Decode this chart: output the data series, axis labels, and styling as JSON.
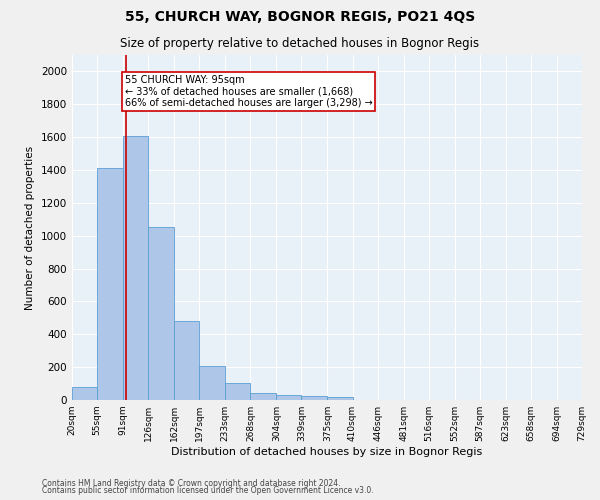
{
  "title1": "55, CHURCH WAY, BOGNOR REGIS, PO21 4QS",
  "title2": "Size of property relative to detached houses in Bognor Regis",
  "xlabel": "Distribution of detached houses by size in Bognor Regis",
  "ylabel": "Number of detached properties",
  "footnote1": "Contains HM Land Registry data © Crown copyright and database right 2024.",
  "footnote2": "Contains public sector information licensed under the Open Government Licence v3.0.",
  "bar_edges": [
    20,
    55,
    91,
    126,
    162,
    197,
    233,
    268,
    304,
    339,
    375,
    410,
    446,
    481,
    516,
    552,
    587,
    623,
    658,
    694,
    729
  ],
  "bar_heights": [
    80,
    1415,
    1610,
    1055,
    480,
    205,
    105,
    40,
    30,
    25,
    20,
    0,
    0,
    0,
    0,
    0,
    0,
    0,
    0,
    0
  ],
  "bar_color": "#aec6e8",
  "bar_edgecolor": "#5a9fd4",
  "bg_color": "#e8f0f8",
  "grid_color": "#ffffff",
  "vline_x": 95,
  "vline_color": "#cc0000",
  "annotation_line1": "55 CHURCH WAY: 95sqm",
  "annotation_line2": "← 33% of detached houses are smaller (1,668)",
  "annotation_line3": "66% of semi-detached houses are larger (3,298) →",
  "annotation_box_edgecolor": "#cc0000",
  "ylim": [
    0,
    2100
  ],
  "yticks": [
    0,
    200,
    400,
    600,
    800,
    1000,
    1200,
    1400,
    1600,
    1800,
    2000
  ],
  "tick_labels": [
    "20sqm",
    "55sqm",
    "91sqm",
    "126sqm",
    "162sqm",
    "197sqm",
    "233sqm",
    "268sqm",
    "304sqm",
    "339sqm",
    "375sqm",
    "410sqm",
    "446sqm",
    "481sqm",
    "516sqm",
    "552sqm",
    "587sqm",
    "623sqm",
    "658sqm",
    "694sqm",
    "729sqm"
  ],
  "fig_bg": "#f0f0f0",
  "title1_fontsize": 10,
  "title2_fontsize": 8.5,
  "xlabel_fontsize": 8,
  "ylabel_fontsize": 7.5,
  "tick_fontsize": 6.5,
  "ytick_fontsize": 7.5,
  "footnote_fontsize": 5.5
}
